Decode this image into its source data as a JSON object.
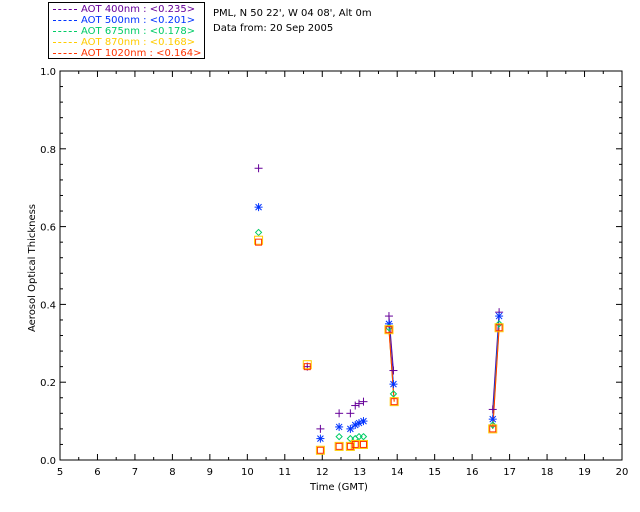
{
  "chart_data": {
    "type": "scatter",
    "title_lines": [
      "PML, N 50 22', W 04 08', Alt 0m",
      "Data from: 20 Sep 2005"
    ],
    "xlabel": "Time (GMT)",
    "ylabel": "Aerosol Optical Thickness",
    "xlim": [
      5,
      20
    ],
    "ylim": [
      0,
      1.0
    ],
    "x_ticks": [
      "5",
      "6",
      "7",
      "8",
      "9",
      "10",
      "11",
      "12",
      "13",
      "14",
      "15",
      "16",
      "17",
      "18",
      "19",
      "20"
    ],
    "y_ticks": [
      "0.0",
      "0.2",
      "0.4",
      "0.6",
      "0.8",
      "1.0"
    ],
    "legend_position": "top-left",
    "series": [
      {
        "name": "AOT 400nm",
        "label": "AOT  400nm : <0.235>",
        "color": "#660099",
        "marker": "plus",
        "x": [
          10.3,
          11.6,
          11.95,
          12.45,
          12.75,
          12.88,
          12.98,
          13.1,
          13.78,
          13.9,
          16.55,
          16.72
        ],
        "y": [
          0.75,
          0.24,
          0.08,
          0.12,
          0.12,
          0.14,
          0.145,
          0.15,
          0.37,
          0.23,
          0.13,
          0.38
        ]
      },
      {
        "name": "AOT 500nm",
        "label": "AOT  500nm : <0.201>",
        "color": "#0033ff",
        "marker": "asterisk",
        "x": [
          10.3,
          11.95,
          12.45,
          12.75,
          12.88,
          12.98,
          13.1,
          13.78,
          13.9,
          16.55,
          16.72
        ],
        "y": [
          0.65,
          0.055,
          0.085,
          0.08,
          0.09,
          0.095,
          0.1,
          0.35,
          0.195,
          0.105,
          0.37
        ]
      },
      {
        "name": "AOT 675nm",
        "label": "AOT  675nm : <0.178>",
        "color": "#00cc66",
        "marker": "diamond",
        "x": [
          10.3,
          12.45,
          12.75,
          12.88,
          12.98,
          13.1,
          13.78,
          13.9,
          16.55,
          16.72
        ],
        "y": [
          0.585,
          0.06,
          0.055,
          0.055,
          0.06,
          0.06,
          0.34,
          0.17,
          0.09,
          0.35
        ]
      },
      {
        "name": "AOT 870nm",
        "label": "AOT  870nm : <0.168>",
        "color": "#ffcc00",
        "marker": "square",
        "x": [
          10.3,
          11.6,
          11.95,
          12.45,
          12.75,
          12.88,
          13.1,
          13.78,
          13.92,
          16.55,
          16.72
        ],
        "y": [
          0.565,
          0.245,
          0.025,
          0.035,
          0.035,
          0.04,
          0.04,
          0.335,
          0.15,
          0.08,
          0.34
        ]
      },
      {
        "name": "AOT 1020nm",
        "label": "AOT 1020nm : <0.164>",
        "color": "#ff3300",
        "marker": "square",
        "x": [
          10.3,
          11.6,
          11.95,
          12.45,
          12.75,
          12.88,
          13.1,
          13.78,
          13.92,
          16.55,
          16.72
        ],
        "y": [
          0.56,
          0.24,
          0.025,
          0.035,
          0.035,
          0.04,
          0.04,
          0.335,
          0.15,
          0.08,
          0.34
        ]
      }
    ]
  }
}
